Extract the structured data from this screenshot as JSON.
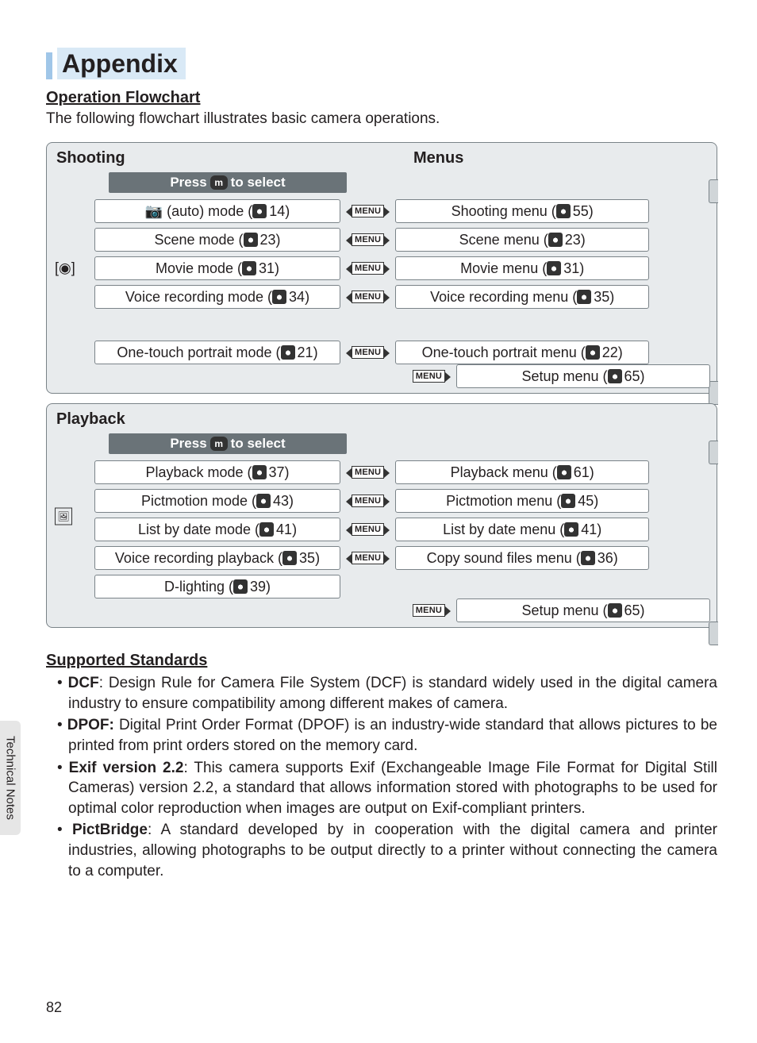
{
  "page": {
    "number": "82",
    "sidebar_label": "Technical Notes"
  },
  "title": "Appendix",
  "flowchart_heading": "Operation Flowchart",
  "intro": "The following flowchart illustrates basic camera operations.",
  "menu_chip_label": "MENU",
  "m_chip_label": "m",
  "panels": {
    "shooting": {
      "title_left": "Shooting",
      "title_right": "Menus",
      "select_bar_pre": "Press",
      "select_bar_post": "to select",
      "side_icon_label": "[◉]",
      "rows": [
        {
          "mode_pre": "📷 (auto) mode (",
          "mode_page": "14",
          "mode_post": ")",
          "menu_pre": "Shooting menu (",
          "menu_page": "55",
          "menu_post": ")"
        },
        {
          "mode_pre": "Scene mode (",
          "mode_page": "23",
          "mode_post": ")",
          "menu_pre": "Scene menu (",
          "menu_page": "23",
          "menu_post": ")"
        },
        {
          "mode_pre": "Movie mode (",
          "mode_page": "31",
          "mode_post": ")",
          "menu_pre": "Movie menu (",
          "menu_page": "31",
          "menu_post": ")"
        },
        {
          "mode_pre": "Voice recording mode (",
          "mode_page": "34",
          "mode_post": ")",
          "menu_pre": "Voice recording menu (",
          "menu_page": "35",
          "menu_post": ")"
        },
        {
          "mode_pre": "One-touch portrait mode (",
          "mode_page": "21",
          "mode_post": ")",
          "menu_pre": "One-touch portrait menu (",
          "menu_page": "22",
          "menu_post": ")"
        }
      ],
      "setup": {
        "pre": "Setup menu (",
        "page": "65",
        "post": ")"
      }
    },
    "playback": {
      "title_left": "Playback",
      "title_right": "",
      "select_bar_pre": "Press",
      "select_bar_post": "to select",
      "side_icon_label": "🖼",
      "rows": [
        {
          "mode_pre": "Playback mode (",
          "mode_page": "37",
          "mode_post": ")",
          "menu_pre": "Playback menu (",
          "menu_page": "61",
          "menu_post": ")"
        },
        {
          "mode_pre": "Pictmotion mode (",
          "mode_page": "43",
          "mode_post": ")",
          "menu_pre": "Pictmotion menu (",
          "menu_page": "45",
          "menu_post": ")"
        },
        {
          "mode_pre": "List by date mode (",
          "mode_page": "41",
          "mode_post": ")",
          "menu_pre": "List by date menu (",
          "menu_page": "41",
          "menu_post": ")"
        },
        {
          "mode_pre": "Voice recording playback (",
          "mode_page": "35",
          "mode_post": ")",
          "menu_pre": "Copy sound files menu (",
          "menu_page": "36",
          "menu_post": ")"
        },
        {
          "mode_pre": "D-lighting (",
          "mode_page": "39",
          "mode_post": ")",
          "menu_pre": "",
          "menu_page": "",
          "menu_post": "",
          "no_menu": true
        }
      ],
      "setup": {
        "pre": "Setup menu (",
        "page": "65",
        "post": ")"
      }
    }
  },
  "standards": {
    "heading": "Supported Standards",
    "items": [
      {
        "bold": "DCF",
        "rest": ": Design Rule for Camera File System (DCF) is standard widely used in the digital camera industry to ensure compatibility among different makes of camera."
      },
      {
        "bold": "DPOF:",
        "rest": " Digital Print Order Format (DPOF) is an industry-wide standard that allows pictures to be printed from print orders stored on the memory card."
      },
      {
        "bold": "Exif version 2.2",
        "rest": ": This camera supports Exif (Exchangeable Image File Format for Digital Still Cameras) version 2.2, a standard that allows information stored with photographs to be used for optimal color reproduction when images are output on Exif-compliant printers."
      },
      {
        "bold": "PictBridge",
        "rest": ": A standard developed by in cooperation with the digital camera and printer industries, allowing photographs to be output directly to a printer without connecting the camera to a computer."
      }
    ]
  }
}
